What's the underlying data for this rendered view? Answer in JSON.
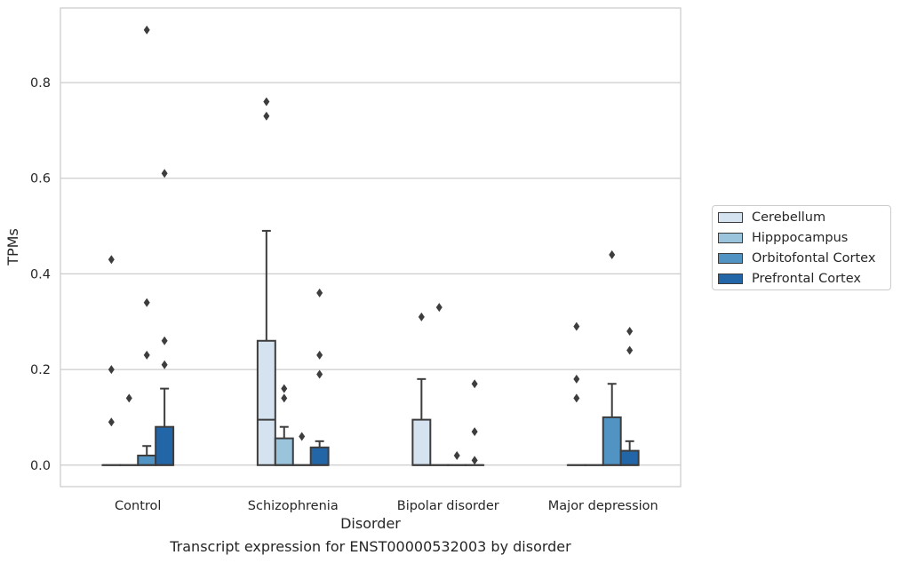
{
  "chart_data": {
    "type": "box",
    "xlabel": "Disorder",
    "ylabel": "TPMs",
    "ylim": [
      -0.045,
      0.956
    ],
    "yticks": [
      "0.0",
      "0.2",
      "0.4",
      "0.6",
      "0.8"
    ],
    "ytick_values": [
      0,
      0.2,
      0.4,
      0.6,
      0.8
    ],
    "grid": "horizontal",
    "legend_placement": "right-outside",
    "categories": [
      "Control",
      "Schizophrenia",
      "Bipolar disorder",
      "Major depression"
    ],
    "series": [
      {
        "name": "Cerebellum",
        "color": "#d5e2f0",
        "boxes": [
          {
            "q1": 0,
            "median": 0,
            "q3": 0,
            "whisker_low": 0,
            "whisker_high": 0,
            "outliers": [
              0.09,
              0.2,
              0.43
            ]
          },
          {
            "q1": 0,
            "median": 0.095,
            "q3": 0.26,
            "whisker_low": 0,
            "whisker_high": 0.49,
            "outliers": [
              0.73,
              0.76
            ]
          },
          {
            "q1": 0,
            "median": 0,
            "q3": 0.095,
            "whisker_low": 0,
            "whisker_high": 0.18,
            "outliers": [
              0.31
            ]
          },
          {
            "q1": 0,
            "median": 0,
            "q3": 0,
            "whisker_low": 0,
            "whisker_high": 0,
            "outliers": [
              0.14,
              0.18,
              0.29
            ]
          }
        ]
      },
      {
        "name": "Hipppocampus",
        "color": "#9ac3dc",
        "boxes": [
          {
            "q1": 0,
            "median": 0,
            "q3": 0,
            "whisker_low": 0,
            "whisker_high": 0,
            "outliers": [
              0.14
            ]
          },
          {
            "q1": 0,
            "median": 0,
            "q3": 0.056,
            "whisker_low": 0,
            "whisker_high": 0.08,
            "outliers": [
              0.14,
              0.16
            ]
          },
          {
            "q1": 0,
            "median": 0,
            "q3": 0,
            "whisker_low": 0,
            "whisker_high": 0,
            "outliers": [
              0.33
            ]
          },
          {
            "q1": 0,
            "median": 0,
            "q3": 0,
            "whisker_low": 0,
            "whisker_high": 0,
            "outliers": []
          }
        ]
      },
      {
        "name": "Orbitofontal Cortex",
        "color": "#5193c3",
        "boxes": [
          {
            "q1": 0,
            "median": 0,
            "q3": 0.02,
            "whisker_low": 0,
            "whisker_high": 0.04,
            "outliers": [
              0.23,
              0.34,
              0.91
            ]
          },
          {
            "q1": 0,
            "median": 0,
            "q3": 0,
            "whisker_low": 0,
            "whisker_high": 0,
            "outliers": [
              0.06
            ]
          },
          {
            "q1": 0,
            "median": 0,
            "q3": 0,
            "whisker_low": 0,
            "whisker_high": 0,
            "outliers": [
              0.02
            ]
          },
          {
            "q1": 0,
            "median": 0,
            "q3": 0.1,
            "whisker_low": 0,
            "whisker_high": 0.17,
            "outliers": [
              0.44
            ]
          }
        ]
      },
      {
        "name": "Prefrontal Cortex",
        "color": "#2366a8",
        "boxes": [
          {
            "q1": 0,
            "median": 0,
            "q3": 0.08,
            "whisker_low": 0,
            "whisker_high": 0.16,
            "outliers": [
              0.21,
              0.26,
              0.61
            ]
          },
          {
            "q1": 0,
            "median": 0,
            "q3": 0.037,
            "whisker_low": 0,
            "whisker_high": 0.05,
            "outliers": [
              0.19,
              0.23,
              0.36
            ]
          },
          {
            "q1": 0,
            "median": 0,
            "q3": 0,
            "whisker_low": 0,
            "whisker_high": 0,
            "outliers": [
              0.01,
              0.07,
              0.17
            ]
          },
          {
            "q1": 0,
            "median": 0,
            "q3": 0.03,
            "whisker_low": 0,
            "whisker_high": 0.05,
            "outliers": [
              0.24,
              0.28
            ]
          }
        ]
      }
    ]
  },
  "caption": "Transcript expression for ENST00000532003 by disorder"
}
